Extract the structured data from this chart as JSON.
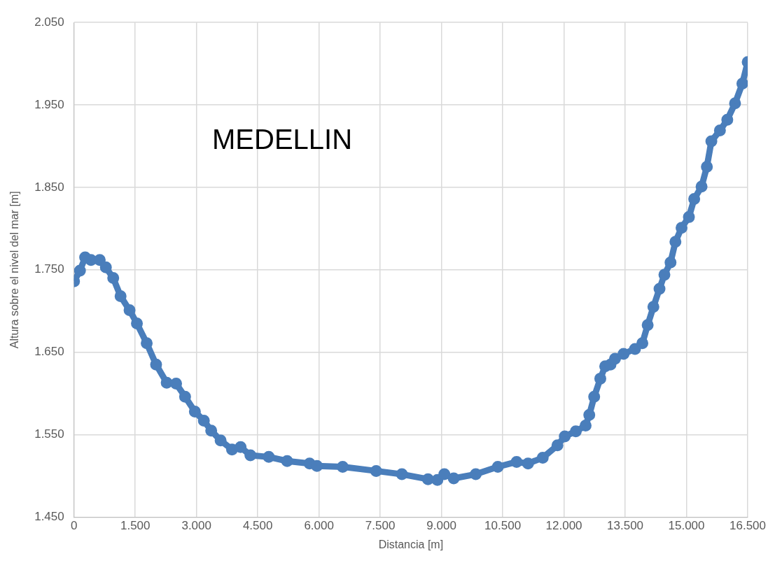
{
  "chart_data": {
    "type": "line",
    "title": "MEDELLIN",
    "xlabel": "Distancia [m]",
    "ylabel": "Altura sobre el nivel del mar [m]",
    "xlim": [
      0,
      16500
    ],
    "xticks": [
      0,
      {
        "value": 1500,
        "label": "1.500"
      },
      {
        "value": 3000,
        "label": "3.000"
      },
      {
        "value": 4500,
        "label": "4.500"
      },
      {
        "value": 6000,
        "label": "6.000"
      },
      {
        "value": 7500,
        "label": "7.500"
      },
      {
        "value": 9000,
        "label": "9.000"
      },
      {
        "value": 10500,
        "label": "10.500"
      },
      {
        "value": 12000,
        "label": "12.000"
      },
      {
        "value": 13500,
        "label": "13.500"
      },
      {
        "value": 15000,
        "label": "15.000"
      },
      {
        "value": 16500,
        "label": "16.500"
      }
    ],
    "ylim": [
      1450,
      2050
    ],
    "yticks": [
      {
        "value": 1450,
        "label": "1.450"
      },
      {
        "value": 1550,
        "label": "1.550"
      },
      {
        "value": 1650,
        "label": "1.650"
      },
      {
        "value": 1750,
        "label": "1.750"
      },
      {
        "value": 1850,
        "label": "1.850"
      },
      {
        "value": 1950,
        "label": "1.950"
      },
      {
        "value": 2050,
        "label": "2.050"
      }
    ],
    "grid": true,
    "legend": false,
    "marker": "circle",
    "series": [
      {
        "color": "#4a7ebb",
        "x": [
          0,
          145,
          272,
          415,
          630,
          780,
          960,
          1140,
          1360,
          1540,
          1780,
          2010,
          2270,
          2500,
          2720,
          2960,
          3180,
          3360,
          3590,
          3870,
          4080,
          4320,
          4770,
          5220,
          5770,
          5950,
          6580,
          7400,
          8030,
          8670,
          8900,
          9070,
          9300,
          9840,
          10380,
          10840,
          11120,
          11480,
          11840,
          12020,
          12290,
          12530,
          12620,
          12740,
          12890,
          13010,
          13140,
          13250,
          13460,
          13740,
          13920,
          14050,
          14190,
          14340,
          14460,
          14610,
          14730,
          14880,
          15060,
          15190,
          15370,
          15500,
          15610,
          15820,
          16000,
          16190,
          16370,
          16500
        ],
        "values": [
          1736,
          1749,
          1765,
          1762,
          1762,
          1753,
          1740,
          1718,
          1701,
          1685,
          1661,
          1635,
          1613,
          1612,
          1596,
          1578,
          1567,
          1555,
          1543,
          1532,
          1535,
          1525,
          1523,
          1518,
          1515,
          1512,
          1511,
          1506,
          1502,
          1496,
          1495,
          1502,
          1497,
          1502,
          1511,
          1517,
          1515,
          1522,
          1537,
          1548,
          1554,
          1561,
          1574,
          1596,
          1618,
          1633,
          1635,
          1642,
          1648,
          1654,
          1661,
          1683,
          1705,
          1727,
          1744,
          1759,
          1784,
          1801,
          1814,
          1836,
          1851,
          1875,
          1906,
          1919,
          1932,
          1952,
          1976,
          2002
        ]
      }
    ]
  }
}
